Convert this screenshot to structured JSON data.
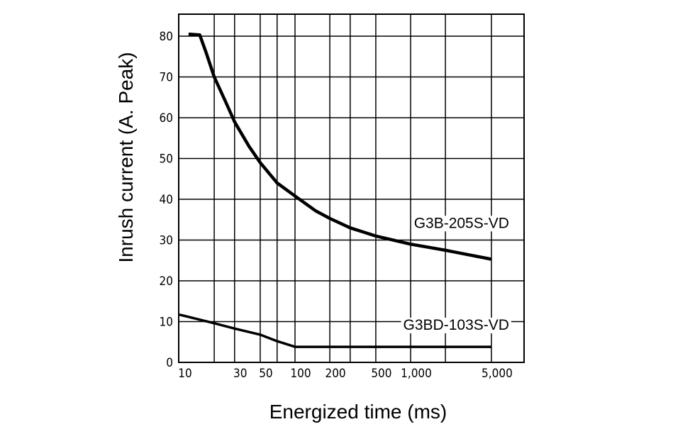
{
  "chart_data": {
    "type": "line",
    "xlabel": "Energized time (ms)",
    "ylabel": "Inrush current (A. Peak)",
    "x_scale": "log",
    "xlim": [
      10,
      10000
    ],
    "ylim": [
      0,
      85
    ],
    "grid": true,
    "x_gridlines": [
      20,
      30,
      50,
      70,
      100,
      200,
      300,
      500,
      1000,
      2000,
      5000
    ],
    "x_ticks": [
      {
        "value": 10,
        "label": "10"
      },
      {
        "value": 30,
        "label": "30"
      },
      {
        "value": 50,
        "label": "50"
      },
      {
        "value": 100,
        "label": "100"
      },
      {
        "value": 200,
        "label": "200"
      },
      {
        "value": 500,
        "label": "500"
      },
      {
        "value": 1000,
        "label": "1,000"
      },
      {
        "value": 5000,
        "label": "5,000"
      }
    ],
    "y_ticks": [
      {
        "value": 0,
        "label": "0"
      },
      {
        "value": 10,
        "label": "10"
      },
      {
        "value": 20,
        "label": "20"
      },
      {
        "value": 30,
        "label": "30"
      },
      {
        "value": 40,
        "label": "40"
      },
      {
        "value": 50,
        "label": "50"
      },
      {
        "value": 60,
        "label": "60"
      },
      {
        "value": 70,
        "label": "70"
      },
      {
        "value": 80,
        "label": "80"
      }
    ],
    "series": [
      {
        "name": "G3B-205S-VD",
        "label_at": [
          5000,
          33
        ],
        "points": [
          [
            12,
            80.5
          ],
          [
            15,
            80.3
          ],
          [
            17,
            76
          ],
          [
            20,
            70
          ],
          [
            25,
            64
          ],
          [
            30,
            59
          ],
          [
            40,
            53
          ],
          [
            50,
            49
          ],
          [
            70,
            44
          ],
          [
            100,
            40.8
          ],
          [
            150,
            37.2
          ],
          [
            200,
            35.3
          ],
          [
            300,
            33
          ],
          [
            500,
            31
          ],
          [
            1000,
            29
          ],
          [
            2000,
            27.5
          ],
          [
            5000,
            25.3
          ]
        ]
      },
      {
        "name": "G3BD-103S-VD",
        "label_at": [
          5000,
          8
        ],
        "points": [
          [
            10,
            11.7
          ],
          [
            20,
            9.6
          ],
          [
            30,
            8.3
          ],
          [
            50,
            6.8
          ],
          [
            70,
            5.2
          ],
          [
            100,
            3.8
          ],
          [
            500,
            3.8
          ],
          [
            5000,
            3.8
          ]
        ]
      }
    ]
  }
}
